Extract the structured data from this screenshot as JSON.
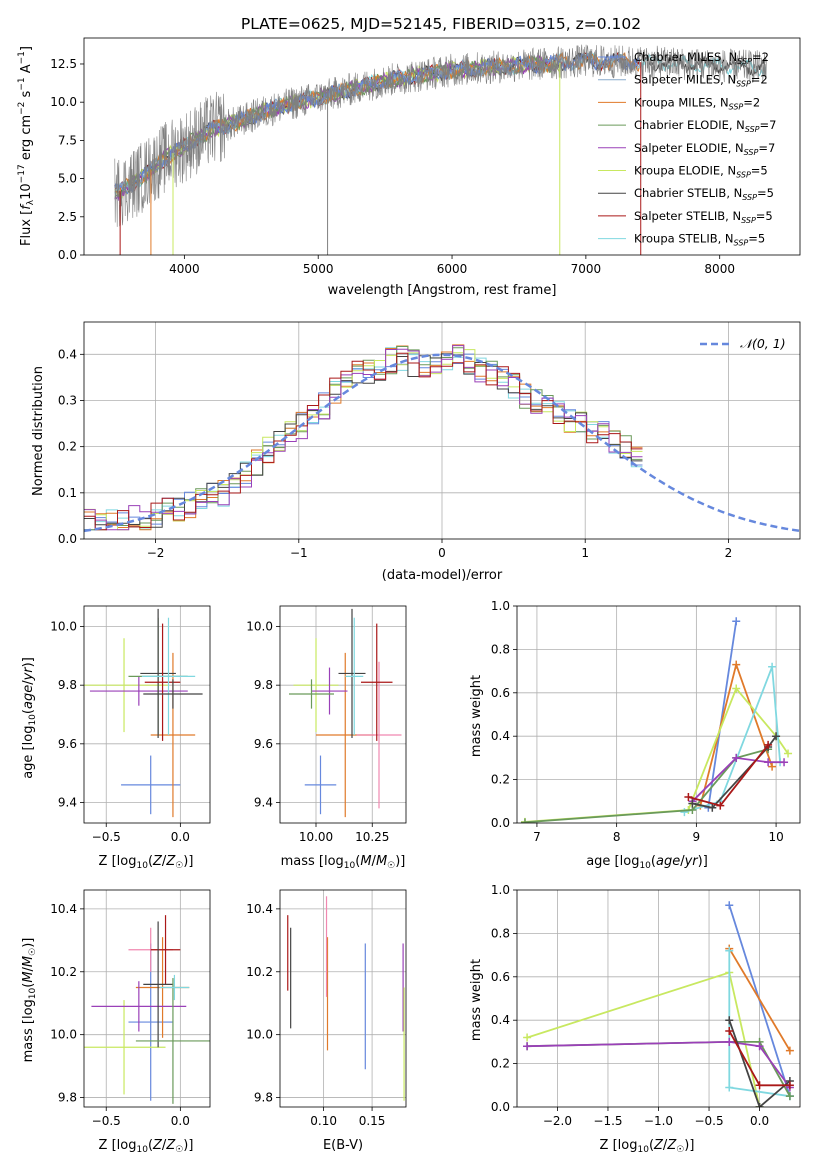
{
  "figure_title": "PLATE=0625, MJD=52145, FIBERID=0315, z=0.102",
  "colors": {
    "chabrier_miles": "#6688dd",
    "salpeter_miles": "#88aacc",
    "kroupa_miles": "#e07a2a",
    "chabrier_elodie": "#6a9a5a",
    "salpeter_elodie": "#9a40b8",
    "kroupa_elodie": "#c8e860",
    "chabrier_stelib": "#444444",
    "salpeter_stelib": "#aa1818",
    "kroupa_stelib": "#80d8e0",
    "data_spectrum": "#808080",
    "gaussian": "#6688dd",
    "pink": "#f088b0"
  },
  "panels": {
    "spectrum": {
      "xlabel": "wavelength [Angstrom, rest frame]",
      "ylabel": "Flux [f_λ10^-17 erg cm^-2 s^-1 A^-1]",
      "xticks": [
        "4000",
        "5000",
        "6000",
        "7000",
        "8000"
      ],
      "yticks": [
        "0.0",
        "2.5",
        "5.0",
        "7.5",
        "10.0",
        "12.5"
      ]
    },
    "residuals": {
      "xlabel": "(data-model)/error",
      "ylabel": "Normed distribution",
      "xticks": [
        "−2",
        "−1",
        "0",
        "1",
        "2"
      ],
      "yticks": [
        "0.0",
        "0.1",
        "0.2",
        "0.3",
        "0.4"
      ],
      "legend": "𝒩(0, 1)"
    },
    "age_vs_Z": {
      "xlabel": "Z [log₁₀(Z/Z☉)]",
      "ylabel": "age  [log₁₀(age/yr)]",
      "xticks": [
        "−0.5",
        "0.0"
      ],
      "yticks": [
        "9.4",
        "9.6",
        "9.8",
        "10.0"
      ]
    },
    "age_vs_mass": {
      "xlabel": "mass [log₁₀(M/M☉)]",
      "xticks": [
        "10.00",
        "10.25"
      ],
      "yticks": [
        "9.4",
        "9.6",
        "9.8",
        "10.0"
      ]
    },
    "weight_vs_age": {
      "xlabel": "age  [log₁₀(age/yr)]",
      "ylabel": "mass weight",
      "xticks": [
        "7",
        "8",
        "9",
        "10"
      ],
      "yticks": [
        "0.0",
        "0.2",
        "0.4",
        "0.6",
        "0.8",
        "1.0"
      ]
    },
    "mass_vs_Z": {
      "xlabel": "Z [log₁₀(Z/Z☉)]",
      "ylabel": "mass [log₁₀(M/M☉)]",
      "xticks": [
        "−0.5",
        "0.0"
      ],
      "yticks": [
        "9.8",
        "10.0",
        "10.2",
        "10.4"
      ]
    },
    "mass_vs_ebv": {
      "xlabel": "E(B-V)",
      "xticks": [
        "0.10",
        "0.15"
      ],
      "yticks": [
        "9.8",
        "10.0",
        "10.2",
        "10.4"
      ]
    },
    "weight_vs_Z": {
      "xlabel": "Z [log₁₀(Z/Z☉)]",
      "ylabel": "mass weight",
      "xticks": [
        "−2.0",
        "−1.5",
        "−1.0",
        "−0.5",
        "0.0"
      ],
      "yticks": [
        "0.0",
        "0.2",
        "0.4",
        "0.6",
        "0.8",
        "1.0"
      ]
    }
  },
  "chart_data": [
    {
      "type": "line",
      "title": "PLATE=0625, MJD=52145, FIBERID=0315, z=0.102",
      "xlabel": "wavelength [Angstrom, rest frame]",
      "ylabel": "Flux [fλ10^-17 erg cm^-2 s^-1 A^-1]",
      "xlim": [
        3250,
        8600
      ],
      "ylim": [
        0,
        14.2
      ],
      "grid": false,
      "legend_position": "top-right",
      "continuum": {
        "x": [
          3500,
          3600,
          3700,
          3800,
          3900,
          4000,
          4200,
          4400,
          4600,
          4800,
          5000,
          5500,
          6000,
          6500,
          7000,
          7500,
          8000,
          8350
        ],
        "y": [
          4.1,
          4.6,
          5.2,
          6.0,
          6.6,
          7.1,
          8.2,
          8.7,
          9.4,
          9.9,
          10.3,
          11.4,
          12.1,
          12.4,
          12.7,
          12.6,
          12.4,
          12.3
        ]
      },
      "series": [
        {
          "name": "Chabrier MILES, N_SSP=2",
          "color_key": "chabrier_miles",
          "xmax": 7400
        },
        {
          "name": "Salpeter MILES, N_SSP=2",
          "color_key": "salpeter_miles",
          "xmax": 7400
        },
        {
          "name": "Kroupa MILES, N_SSP=2",
          "color_key": "kroupa_miles",
          "xmax": 7400
        },
        {
          "name": "Chabrier ELODIE, N_SSP=7",
          "color_key": "chabrier_elodie",
          "xmax": 6800
        },
        {
          "name": "Salpeter ELODIE, N_SSP=7",
          "color_key": "salpeter_elodie",
          "xmax": 6800
        },
        {
          "name": "Kroupa ELODIE, N_SSP=5",
          "color_key": "kroupa_elodie",
          "xmax": 6800
        },
        {
          "name": "Chabrier STELIB, N_SSP=5",
          "color_key": "chabrier_stelib",
          "xmax": 8350
        },
        {
          "name": "Salpeter STELIB, N_SSP=5",
          "color_key": "salpeter_stelib",
          "xmax": 7400
        },
        {
          "name": "Kroupa STELIB, N_SSP=5",
          "color_key": "kroupa_stelib",
          "xmax": 8350
        }
      ]
    },
    {
      "type": "line",
      "xlabel": "(data-model)/error",
      "ylabel": "Normed distribution",
      "xlim": [
        -2.5,
        2.5
      ],
      "ylim": [
        0,
        0.47
      ],
      "grid": true,
      "legend_position": "top-right",
      "bin_width": 0.1,
      "histogram_envelope": [
        0.035,
        0.036,
        0.038,
        0.04,
        0.043,
        0.046,
        0.052,
        0.06,
        0.066,
        0.072,
        0.08,
        0.092,
        0.1,
        0.115,
        0.14,
        0.165,
        0.195,
        0.21,
        0.23,
        0.245,
        0.265,
        0.29,
        0.32,
        0.34,
        0.355,
        0.36,
        0.37,
        0.385,
        0.395,
        0.38,
        0.37,
        0.375,
        0.395,
        0.4,
        0.385,
        0.37,
        0.36,
        0.35,
        0.33,
        0.31,
        0.3,
        0.29,
        0.28,
        0.26,
        0.245,
        0.235,
        0.225,
        0.215,
        0.195,
        0.18,
        0.16,
        0.145,
        0.13,
        0.115,
        0.1,
        0.085,
        0.07,
        0.06,
        0.052,
        0.047,
        0.04,
        0.038,
        0.036,
        0.035
      ],
      "gaussian": {
        "name": "𝒩(0, 1)",
        "mean": 0,
        "sigma": 1
      }
    },
    {
      "type": "scatter",
      "xlabel": "age  [log₁₀(age/yr)]",
      "ylabel": "mass weight",
      "xlim": [
        6.75,
        10.3
      ],
      "ylim": [
        0,
        1.0
      ],
      "grid": true,
      "series": [
        {
          "color_key": "chabrier_miles",
          "points": [
            [
              9.15,
              0.07
            ],
            [
              9.5,
              0.93
            ]
          ]
        },
        {
          "color_key": "kroupa_miles",
          "points": [
            [
              9.05,
              0.08
            ],
            [
              9.5,
              0.73
            ],
            [
              9.95,
              0.26
            ]
          ]
        },
        {
          "color_key": "kroupa_elodie",
          "points": [
            [
              6.85,
              0.005
            ],
            [
              8.9,
              0.06
            ],
            [
              9.5,
              0.62
            ],
            [
              10.0,
              0.4
            ],
            [
              10.15,
              0.32
            ]
          ]
        },
        {
          "color_key": "kroupa_stelib",
          "points": [
            [
              8.85,
              0.05
            ],
            [
              9.3,
              0.1
            ],
            [
              9.95,
              0.72
            ],
            [
              10.05,
              0.28
            ]
          ]
        },
        {
          "color_key": "chabrier_elodie",
          "points": [
            [
              6.85,
              0.003
            ],
            [
              8.95,
              0.06
            ],
            [
              9.5,
              0.3
            ],
            [
              9.9,
              0.34
            ]
          ]
        },
        {
          "color_key": "salpeter_elodie",
          "points": [
            [
              8.95,
              0.1
            ],
            [
              9.5,
              0.3
            ],
            [
              9.9,
              0.28
            ],
            [
              10.1,
              0.28
            ]
          ]
        },
        {
          "color_key": "chabrier_stelib",
          "points": [
            [
              8.95,
              0.09
            ],
            [
              9.2,
              0.07
            ],
            [
              9.9,
              0.35
            ],
            [
              10.0,
              0.4
            ]
          ]
        },
        {
          "color_key": "salpeter_stelib",
          "points": [
            [
              8.9,
              0.12
            ],
            [
              9.3,
              0.08
            ],
            [
              9.9,
              0.36
            ]
          ]
        }
      ]
    },
    {
      "type": "scatter",
      "xlabel": "Z [log₁₀(Z/Z☉)]",
      "ylabel": "mass weight",
      "xlim": [
        -2.4,
        0.4
      ],
      "ylim": [
        0,
        1.0
      ],
      "grid": true,
      "series": [
        {
          "color_key": "chabrier_miles",
          "points": [
            [
              -0.3,
              0.93
            ],
            [
              0.3,
              0.05
            ]
          ]
        },
        {
          "color_key": "kroupa_miles",
          "points": [
            [
              -0.3,
              0.73
            ],
            [
              0.3,
              0.26
            ]
          ]
        },
        {
          "color_key": "kroupa_elodie",
          "points": [
            [
              -2.3,
              0.32
            ],
            [
              -0.3,
              0.62
            ],
            [
              0.0,
              0.0
            ]
          ]
        },
        {
          "color_key": "kroupa_stelib",
          "points": [
            [
              -0.3,
              0.72
            ],
            [
              -0.3,
              0.09
            ],
            [
              0.3,
              0.05
            ]
          ]
        },
        {
          "color_key": "chabrier_elodie",
          "points": [
            [
              -2.3,
              0.28
            ],
            [
              -0.3,
              0.3
            ],
            [
              0.0,
              0.3
            ],
            [
              0.3,
              0.05
            ]
          ]
        },
        {
          "color_key": "salpeter_elodie",
          "points": [
            [
              -2.3,
              0.28
            ],
            [
              -0.3,
              0.3
            ],
            [
              0.0,
              0.28
            ],
            [
              0.3,
              0.09
            ]
          ]
        },
        {
          "color_key": "chabrier_stelib",
          "points": [
            [
              -0.3,
              0.4
            ],
            [
              0.0,
              0.0
            ],
            [
              0.3,
              0.12
            ]
          ]
        },
        {
          "color_key": "salpeter_stelib",
          "points": [
            [
              -0.3,
              0.35
            ],
            [
              0.0,
              0.1
            ],
            [
              0.3,
              0.1
            ]
          ]
        }
      ]
    },
    {
      "type": "scatter",
      "note_source": "error crosses",
      "xlabel": "Z [log₁₀(Z/Z☉)]",
      "ylabel": "age  [log₁₀(age/yr)]",
      "xlim": [
        -0.65,
        0.2
      ],
      "ylim": [
        9.33,
        10.07
      ],
      "grid": true,
      "crosses": [
        {
          "color_key": "chabrier_miles",
          "x": -0.2,
          "xerr": 0.2,
          "y": 9.46,
          "yerr": 0.1
        },
        {
          "color_key": "kroupa_miles",
          "x": -0.05,
          "xerr": 0.15,
          "y": 9.63,
          "yerr": 0.28
        },
        {
          "color_key": "kroupa_elodie",
          "x": -0.38,
          "xerr": 0.3,
          "y": 9.8,
          "yerr": 0.16
        },
        {
          "color_key": "salpeter_elodie",
          "x": -0.28,
          "xerr": 0.33,
          "y": 9.78,
          "yerr": 0.05
        },
        {
          "color_key": "chabrier_elodie",
          "x": -0.15,
          "xerr": 0.2,
          "y": 9.83,
          "yerr": 0.2
        },
        {
          "color_key": "chabrier_stelib",
          "x": -0.15,
          "xerr": 0.12,
          "y": 9.84,
          "yerr": 0.22
        },
        {
          "color_key": "salpeter_stelib",
          "x": -0.12,
          "xerr": 0.12,
          "y": 9.81,
          "yerr": 0.2
        },
        {
          "color_key": "kroupa_stelib",
          "x": -0.08,
          "xerr": 0.18,
          "y": 9.83,
          "yerr": 0.2
        },
        {
          "color_key": "chabrier_stelib",
          "x": -0.05,
          "xerr": 0.2,
          "y": 9.77,
          "yerr": 0.05
        }
      ]
    },
    {
      "type": "scatter",
      "note_source": "error crosses",
      "xlabel": "mass [log₁₀(M/M☉)]",
      "xlim": [
        9.84,
        10.4
      ],
      "ylim": [
        9.33,
        10.07
      ],
      "grid": true,
      "crosses": [
        {
          "color_key": "chabrier_miles",
          "x": 10.02,
          "xerr": 0.07,
          "y": 9.46,
          "yerr": 0.1
        },
        {
          "color_key": "kroupa_miles",
          "x": 10.13,
          "xerr": 0.13,
          "y": 9.63,
          "yerr": 0.28
        },
        {
          "color_key": "pink",
          "x": 10.28,
          "xerr": 0.1,
          "y": 9.63,
          "yerr": 0.25
        },
        {
          "color_key": "kroupa_elodie",
          "x": 10.0,
          "xerr": 0.1,
          "y": 9.8,
          "yerr": 0.16
        },
        {
          "color_key": "salpeter_elodie",
          "x": 10.06,
          "xerr": 0.08,
          "y": 9.78,
          "yerr": 0.08
        },
        {
          "color_key": "chabrier_stelib",
          "x": 10.16,
          "xerr": 0.06,
          "y": 9.84,
          "yerr": 0.22
        },
        {
          "color_key": "salpeter_stelib",
          "x": 10.27,
          "xerr": 0.07,
          "y": 9.81,
          "yerr": 0.2
        },
        {
          "color_key": "kroupa_stelib",
          "x": 10.17,
          "xerr": 0.04,
          "y": 9.83,
          "yerr": 0.2
        },
        {
          "color_key": "chabrier_elodie",
          "x": 9.98,
          "xerr": 0.1,
          "y": 9.77,
          "yerr": 0.05
        }
      ]
    },
    {
      "type": "scatter",
      "note_source": "error crosses",
      "xlabel": "Z [log₁₀(Z/Z☉)]",
      "ylabel": "mass [log₁₀(M/M☉)]",
      "xlim": [
        -0.65,
        0.2
      ],
      "ylim": [
        9.77,
        10.46
      ],
      "grid": true,
      "crosses": [
        {
          "color_key": "chabrier_miles",
          "x": -0.2,
          "xerr": 0.15,
          "y": 10.04,
          "yerr": 0.25
        },
        {
          "color_key": "kroupa_miles",
          "x": -0.12,
          "xerr": 0.18,
          "y": 10.15,
          "yerr": 0.16
        },
        {
          "color_key": "kroupa_elodie",
          "x": -0.38,
          "xerr": 0.28,
          "y": 9.96,
          "yerr": 0.15
        },
        {
          "color_key": "salpeter_elodie",
          "x": -0.28,
          "xerr": 0.32,
          "y": 10.09,
          "yerr": 0.08
        },
        {
          "color_key": "pink",
          "x": -0.2,
          "xerr": 0.15,
          "y": 10.27,
          "yerr": 0.07
        },
        {
          "color_key": "salpeter_stelib",
          "x": -0.1,
          "xerr": 0.1,
          "y": 10.27,
          "yerr": 0.11
        },
        {
          "color_key": "chabrier_stelib",
          "x": -0.15,
          "xerr": 0.1,
          "y": 10.16,
          "yerr": 0.2
        },
        {
          "color_key": "chabrier_elodie",
          "x": -0.05,
          "xerr": 0.25,
          "y": 9.98,
          "yerr": 0.2
        },
        {
          "color_key": "kroupa_stelib",
          "x": -0.04,
          "xerr": 0.1,
          "y": 10.15,
          "yerr": 0.04
        }
      ]
    },
    {
      "type": "scatter",
      "note_source": "vertical error bars",
      "xlabel": "E(B-V)",
      "xlim": [
        0.055,
        0.185
      ],
      "ylim": [
        9.77,
        10.46
      ],
      "grid": true,
      "bars": [
        {
          "color_key": "salpeter_stelib",
          "x": 0.063,
          "y": 10.26,
          "yerr": 0.12
        },
        {
          "color_key": "chabrier_stelib",
          "x": 0.066,
          "y": 10.18,
          "yerr": 0.16
        },
        {
          "color_key": "kroupa_miles",
          "x": 0.104,
          "y": 10.13,
          "yerr": 0.18
        },
        {
          "color_key": "pink",
          "x": 0.103,
          "y": 10.28,
          "yerr": 0.16
        },
        {
          "color_key": "chabrier_miles",
          "x": 0.143,
          "y": 10.09,
          "yerr": 0.2
        },
        {
          "color_key": "salpeter_elodie",
          "x": 0.182,
          "y": 10.15,
          "yerr": 0.14
        },
        {
          "color_key": "kroupa_elodie",
          "x": 0.183,
          "y": 9.97,
          "yerr": 0.18
        }
      ]
    }
  ]
}
